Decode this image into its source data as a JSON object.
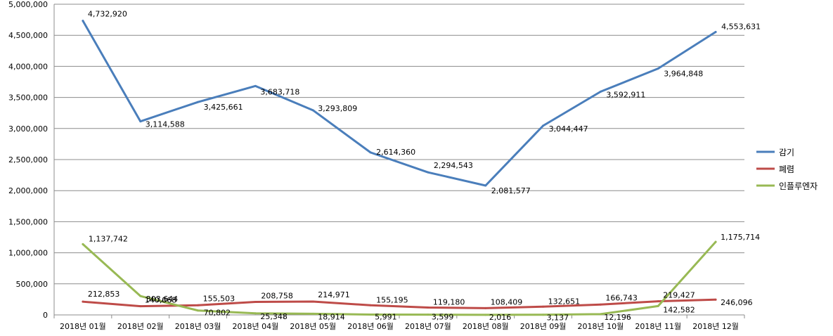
{
  "chart_data": {
    "type": "line",
    "title": "",
    "xlabel": "",
    "ylabel": "",
    "ylim": [
      0,
      5000000
    ],
    "ytick_step": 500000,
    "y_ticks": [
      "0",
      "500,000",
      "1,000,000",
      "1,500,000",
      "2,000,000",
      "2,500,000",
      "3,000,000",
      "3,500,000",
      "4,000,000",
      "4,500,000",
      "5,000,000"
    ],
    "grid": true,
    "legend_position": "right",
    "categories": [
      "2018년 01월",
      "2018년 02월",
      "2018년 03월",
      "2018년 04월",
      "2018년 05월",
      "2018년 06월",
      "2018년 07월",
      "2018년 08월",
      "2018년 09월",
      "2018년 10월",
      "2018년 11월",
      "2018년 12월"
    ],
    "series": [
      {
        "name": "감기",
        "color": "#4a7ebb",
        "values": [
          4732920,
          3114588,
          3425661,
          3683718,
          3293809,
          2614360,
          2294543,
          2081577,
          3044447,
          3592911,
          3964848,
          4553631
        ],
        "labels": [
          "4,732,920",
          "3,114,588",
          "3,425,661",
          "3,683,718",
          "3,293,809",
          "2,614,360",
          "2,294,543",
          "2,081,577",
          "3,044,447",
          "3,592,911",
          "3,964,848",
          "4,553,631"
        ]
      },
      {
        "name": "폐렴",
        "color": "#be4b48",
        "values": [
          212853,
          140068,
          155503,
          208758,
          214971,
          155195,
          119180,
          108409,
          132651,
          166743,
          219427,
          246096
        ],
        "labels": [
          "212,853",
          "140,068",
          "155,503",
          "208,758",
          "214,971",
          "155,195",
          "119,180",
          "108,409",
          "132,651",
          "166,743",
          "219,427",
          "246,096"
        ]
      },
      {
        "name": "인플루엔자",
        "color": "#98b954",
        "values": [
          1137742,
          303644,
          70802,
          25348,
          18914,
          5991,
          3599,
          2016,
          3137,
          12196,
          142582,
          1175714
        ],
        "labels": [
          "1,137,742",
          "303,644",
          "70,802",
          "25,348",
          "18,914",
          "5,991",
          "3,599",
          "2,016",
          "3,137",
          "12,196",
          "142,582",
          "1,175,714"
        ]
      }
    ]
  }
}
